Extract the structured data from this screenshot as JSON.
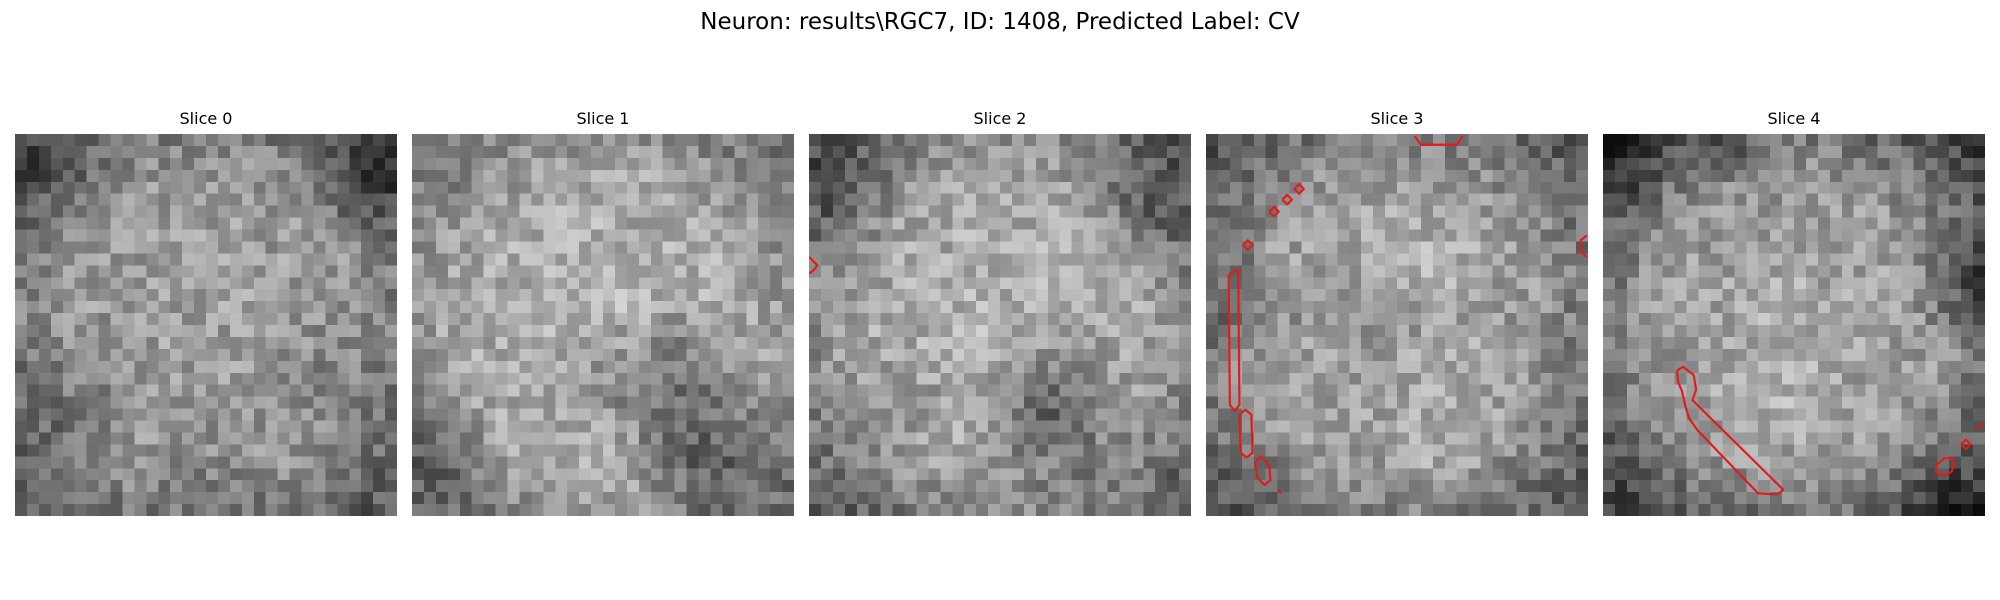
{
  "figure": {
    "title": "Neuron: results\\RGC7, ID: 1408, Predicted Label: CV",
    "contour_color": "#e31a1c"
  },
  "slices": [
    {
      "title": "Slice 0"
    },
    {
      "title": "Slice 1"
    },
    {
      "title": "Slice 2"
    },
    {
      "title": "Slice 3"
    },
    {
      "title": "Slice 4"
    }
  ]
}
